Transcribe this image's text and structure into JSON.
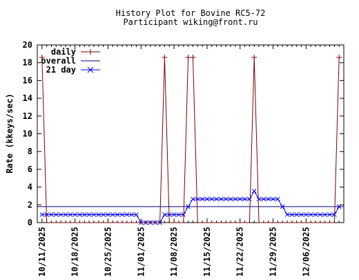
{
  "chart_data": {
    "type": "line",
    "title": "History Plot for Bovine RC5-72",
    "subtitle": "Participant wiking@front.ru",
    "xlabel": "",
    "ylabel": "Rate (kkeys/sec)",
    "ylim": [
      0,
      20
    ],
    "yticks": [
      0,
      2,
      4,
      6,
      8,
      10,
      12,
      14,
      16,
      18,
      20
    ],
    "xlim": [
      "2025-10-10",
      "2025-12-14"
    ],
    "xtick_labels": [
      "10/11/2025",
      "10/18/2025",
      "10/25/2025",
      "11/01/2025",
      "11/08/2025",
      "11/15/2025",
      "11/22/2025",
      "11/29/2025",
      "12/06/2025"
    ],
    "grid": false,
    "legend_position": "top-left",
    "colors": {
      "daily": "#7a0000",
      "overall": "#000080",
      "21 day": "#0000ff"
    },
    "series": [
      {
        "name": "daily",
        "style": "line-plus-markers",
        "points": [
          [
            "2025-10-11",
            18.6
          ],
          [
            "2025-10-12",
            0
          ],
          [
            "2025-11-05",
            0
          ],
          [
            "2025-11-06",
            18.6
          ],
          [
            "2025-11-07",
            0
          ],
          [
            "2025-11-10",
            0
          ],
          [
            "2025-11-11",
            18.6
          ],
          [
            "2025-11-12",
            18.6
          ],
          [
            "2025-11-13",
            0
          ],
          [
            "2025-11-24",
            0
          ],
          [
            "2025-11-25",
            18.6
          ],
          [
            "2025-11-26",
            0
          ],
          [
            "2025-12-12",
            0
          ],
          [
            "2025-12-13",
            18.6
          ]
        ]
      },
      {
        "name": "overall",
        "style": "line",
        "points": [
          [
            "2025-10-10",
            1.8
          ],
          [
            "2025-12-14",
            1.8
          ]
        ]
      },
      {
        "name": "21 day",
        "style": "line-x-markers",
        "points": [
          [
            "2025-10-11",
            0.9
          ],
          [
            "2025-10-12",
            0.9
          ],
          [
            "2025-10-13",
            0.9
          ],
          [
            "2025-10-14",
            0.9
          ],
          [
            "2025-10-15",
            0.9
          ],
          [
            "2025-10-16",
            0.9
          ],
          [
            "2025-10-17",
            0.9
          ],
          [
            "2025-10-18",
            0.9
          ],
          [
            "2025-10-19",
            0.9
          ],
          [
            "2025-10-20",
            0.9
          ],
          [
            "2025-10-21",
            0.9
          ],
          [
            "2025-10-22",
            0.9
          ],
          [
            "2025-10-23",
            0.9
          ],
          [
            "2025-10-24",
            0.9
          ],
          [
            "2025-10-25",
            0.9
          ],
          [
            "2025-10-26",
            0.9
          ],
          [
            "2025-10-27",
            0.9
          ],
          [
            "2025-10-28",
            0.9
          ],
          [
            "2025-10-29",
            0.9
          ],
          [
            "2025-10-30",
            0.9
          ],
          [
            "2025-10-31",
            0.9
          ],
          [
            "2025-11-01",
            0
          ],
          [
            "2025-11-02",
            0
          ],
          [
            "2025-11-03",
            0
          ],
          [
            "2025-11-04",
            0
          ],
          [
            "2025-11-05",
            0
          ],
          [
            "2025-11-06",
            0.9
          ],
          [
            "2025-11-07",
            0.9
          ],
          [
            "2025-11-08",
            0.9
          ],
          [
            "2025-11-09",
            0.9
          ],
          [
            "2025-11-10",
            0.9
          ],
          [
            "2025-11-11",
            1.8
          ],
          [
            "2025-11-12",
            2.65
          ],
          [
            "2025-11-13",
            2.65
          ],
          [
            "2025-11-14",
            2.65
          ],
          [
            "2025-11-15",
            2.65
          ],
          [
            "2025-11-16",
            2.65
          ],
          [
            "2025-11-17",
            2.65
          ],
          [
            "2025-11-18",
            2.65
          ],
          [
            "2025-11-19",
            2.65
          ],
          [
            "2025-11-20",
            2.65
          ],
          [
            "2025-11-21",
            2.65
          ],
          [
            "2025-11-22",
            2.65
          ],
          [
            "2025-11-23",
            2.65
          ],
          [
            "2025-11-24",
            2.65
          ],
          [
            "2025-11-25",
            3.55
          ],
          [
            "2025-11-26",
            2.65
          ],
          [
            "2025-11-27",
            2.65
          ],
          [
            "2025-11-28",
            2.65
          ],
          [
            "2025-11-29",
            2.65
          ],
          [
            "2025-11-30",
            2.65
          ],
          [
            "2025-12-01",
            1.8
          ],
          [
            "2025-12-02",
            0.9
          ],
          [
            "2025-12-03",
            0.9
          ],
          [
            "2025-12-04",
            0.9
          ],
          [
            "2025-12-05",
            0.9
          ],
          [
            "2025-12-06",
            0.9
          ],
          [
            "2025-12-07",
            0.9
          ],
          [
            "2025-12-08",
            0.9
          ],
          [
            "2025-12-09",
            0.9
          ],
          [
            "2025-12-10",
            0.9
          ],
          [
            "2025-12-11",
            0.9
          ],
          [
            "2025-12-12",
            0.9
          ],
          [
            "2025-12-13",
            1.8
          ]
        ]
      }
    ]
  }
}
